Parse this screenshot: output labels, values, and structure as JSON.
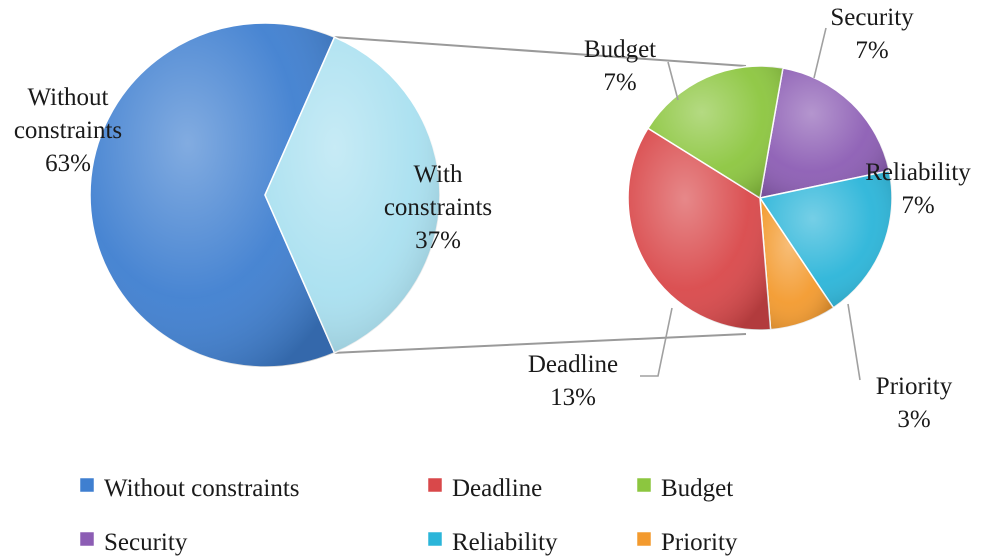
{
  "chart_data": {
    "type": "pie",
    "subtype": "pie-of-pie",
    "main_pie": {
      "slices": [
        {
          "name": "Without constraints",
          "value": 63,
          "label_name": "Without constraints",
          "label_value": "63%",
          "color": "#3f7fd0"
        },
        {
          "name": "With constraints",
          "value": 37,
          "label_name": "With constraints",
          "label_value": "37%",
          "color": "#a9e0f0"
        }
      ]
    },
    "secondary_pie": {
      "slices": [
        {
          "name": "Security",
          "value": 7,
          "label_name": "Security",
          "label_value": "7%",
          "color": "#8c5db4"
        },
        {
          "name": "Reliability",
          "value": 7,
          "label_name": "Reliability",
          "label_value": "7%",
          "color": "#2bb5d9"
        },
        {
          "name": "Priority",
          "value": 3,
          "label_name": "Priority",
          "label_value": "3%",
          "color": "#f39a2e"
        },
        {
          "name": "Deadline",
          "value": 13,
          "label_name": "Deadline",
          "label_value": "13%",
          "color": "#d9484a"
        },
        {
          "name": "Budget",
          "value": 7,
          "label_name": "Budget",
          "label_value": "7%",
          "color": "#8cc63f"
        }
      ]
    },
    "legend": {
      "placement": "bottom",
      "items": [
        {
          "label": "Without constraints",
          "color": "#3f7fd0"
        },
        {
          "label": "Deadline",
          "color": "#d9484a"
        },
        {
          "label": "Budget",
          "color": "#8cc63f"
        },
        {
          "label": "Security",
          "color": "#8c5db4"
        },
        {
          "label": "Reliability",
          "color": "#2bb5d9"
        },
        {
          "label": "Priority",
          "color": "#f39a2e"
        }
      ]
    }
  }
}
